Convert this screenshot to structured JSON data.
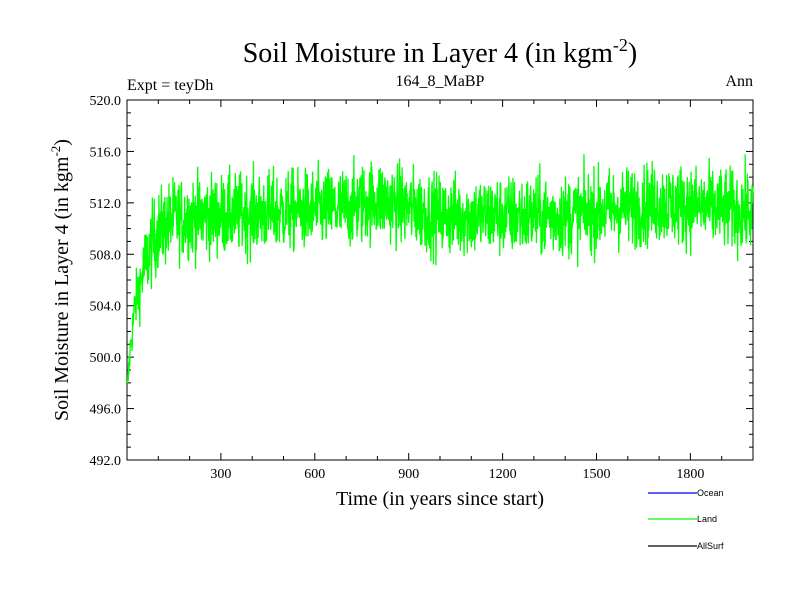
{
  "chart_data": {
    "type": "line",
    "title_main": "Soil Moisture in Layer 4 (in kgm",
    "title_sup": "-2",
    "title_end": ")",
    "experiment_label": "Expt = teyDh",
    "subtitle": "164_8_MaBP",
    "period_label": "Ann",
    "xlabel": "Time (in years since start)",
    "ylabel_main": "Soil Moisture in Layer 4 (in kgm",
    "ylabel_sup": "-2",
    "ylabel_end": ")",
    "xlim": [
      0,
      2000
    ],
    "ylim": [
      492.0,
      520.0
    ],
    "x_ticks": [
      300,
      600,
      900,
      1200,
      1500,
      1800
    ],
    "x_tick_labels": [
      "300",
      "600",
      "900",
      "1200",
      "1500",
      "1800"
    ],
    "y_ticks": [
      492,
      496,
      500,
      504,
      508,
      512,
      516,
      520
    ],
    "y_tick_labels": [
      "492.0",
      "496.0",
      "500.0",
      "504.0",
      "508.0",
      "512.0",
      "516.0",
      "520.0"
    ],
    "legend": [
      {
        "name": "Ocean",
        "color": "#0000ff"
      },
      {
        "name": "Land",
        "color": "#00ff00"
      },
      {
        "name": "AllSurf",
        "color": "#000000"
      }
    ],
    "series": [
      {
        "name": "Land",
        "color": "#00ff00",
        "n_years": 2000,
        "spinup_profile": {
          "x": [
            0,
            10,
            25,
            50,
            75,
            100,
            150,
            250,
            700,
            800,
            1000,
            1400,
            1700,
            2000
          ],
          "y": [
            497.0,
            500.5,
            504.0,
            506.5,
            508.5,
            509.8,
            510.8,
            511.0,
            511.6,
            512.3,
            511.0,
            511.0,
            512.0,
            511.3
          ]
        },
        "max_value": 516.3,
        "min_value": 495.8,
        "mean_value": 511.3
      }
    ]
  }
}
